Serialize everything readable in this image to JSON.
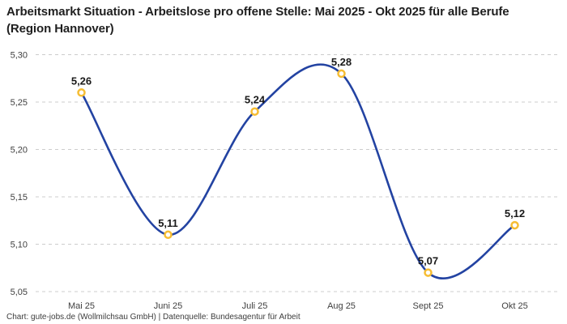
{
  "header": {
    "title": "Arbeitsmarkt Situation - Arbeitslose pro offene Stelle: Mai 2025 - Okt 2025 für alle Berufe (Region Hannover)"
  },
  "footer": {
    "credit": "Chart: gute-jobs.de (Wollmilchsau GmbH) | Datenquelle: Bundesagentur für Arbeit"
  },
  "chart_data": {
    "type": "line",
    "title": "Arbeitsmarkt Situation - Arbeitslose pro offene Stelle: Mai 2025 - Okt 2025 für alle Berufe (Region Hannover)",
    "categories": [
      "Mai 25",
      "Juni 25",
      "Juli 25",
      "Aug 25",
      "Sept 25",
      "Okt 25"
    ],
    "values": [
      5.26,
      5.11,
      5.24,
      5.28,
      5.07,
      5.12
    ],
    "value_labels": [
      "5,26",
      "5,11",
      "5,24",
      "5,28",
      "5,07",
      "5,12"
    ],
    "xlabel": "",
    "ylabel": "",
    "ylim": [
      5.05,
      5.3
    ],
    "y_ticks": [
      {
        "value": 5.05,
        "label": "5,05"
      },
      {
        "value": 5.1,
        "label": "5,10"
      },
      {
        "value": 5.15,
        "label": "5,15"
      },
      {
        "value": 5.2,
        "label": "5,20"
      },
      {
        "value": 5.25,
        "label": "5,25"
      },
      {
        "value": 5.3,
        "label": "5,30"
      }
    ],
    "legend": "none",
    "grid": "horizontal-dashed",
    "line_style": "smooth",
    "colors": {
      "line": "#2343a2",
      "marker_stroke": "#f6bd33",
      "marker_fill": "#ffffff",
      "grid": "#cccccc",
      "data_label": "#191919",
      "axis_label": "#404040"
    }
  }
}
